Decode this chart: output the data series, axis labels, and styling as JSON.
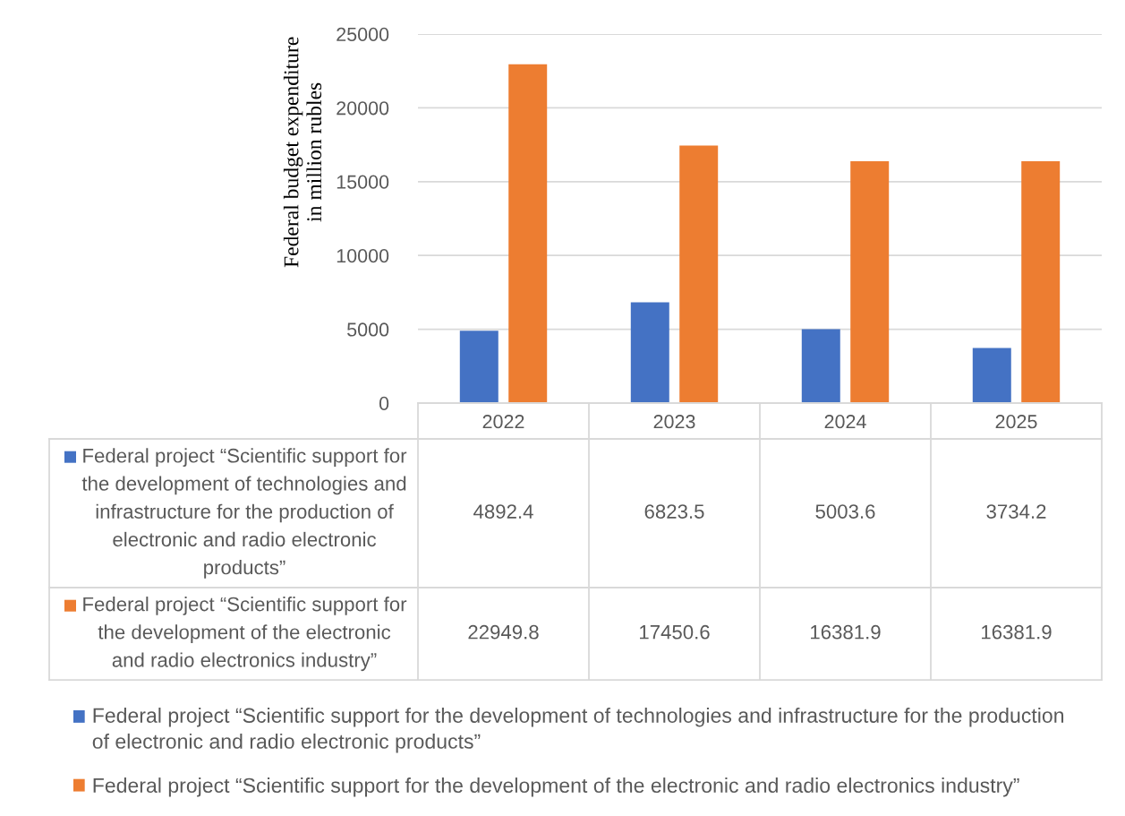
{
  "chart_data": {
    "type": "bar",
    "ylabel": "Federal budget expenditure\nin million rubles",
    "categories": [
      "2022",
      "2023",
      "2024",
      "2025"
    ],
    "series": [
      {
        "name": "Federal project “Scientific support for the development of technologies and infrastructure for the production of electronic and radio electronic products”",
        "color": "#4472c4",
        "values": [
          4892.4,
          6823.5,
          5003.6,
          3734.2
        ]
      },
      {
        "name": "Federal project “Scientific support for the development of the electronic and radio electronics industry”",
        "color": "#ed7d31",
        "values": [
          22949.8,
          17450.6,
          16381.9,
          16381.9
        ]
      }
    ],
    "ylim": [
      0,
      25000
    ],
    "yticks": [
      0,
      5000,
      10000,
      15000,
      20000,
      25000
    ],
    "grid": "y",
    "legend": "bottom",
    "data_labels": true
  }
}
